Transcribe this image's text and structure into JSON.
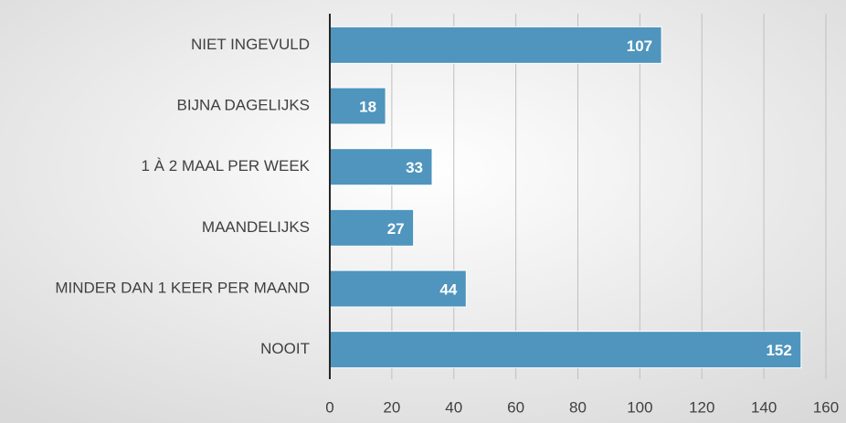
{
  "chart_data": {
    "type": "barh",
    "categories": [
      "NIET INGEVULD",
      "BIJNA DAGELIJKS",
      "1 À 2 MAAL PER WEEK",
      "MAANDELIJKS",
      "MINDER DAN 1 KEER PER MAAND",
      "NOOIT"
    ],
    "values": [
      107,
      18,
      33,
      27,
      44,
      152
    ],
    "color": "#4f95bd",
    "xlim": [
      0,
      160
    ],
    "xticks": [
      0,
      20,
      40,
      60,
      80,
      100,
      120,
      140,
      160
    ],
    "grid": true
  }
}
